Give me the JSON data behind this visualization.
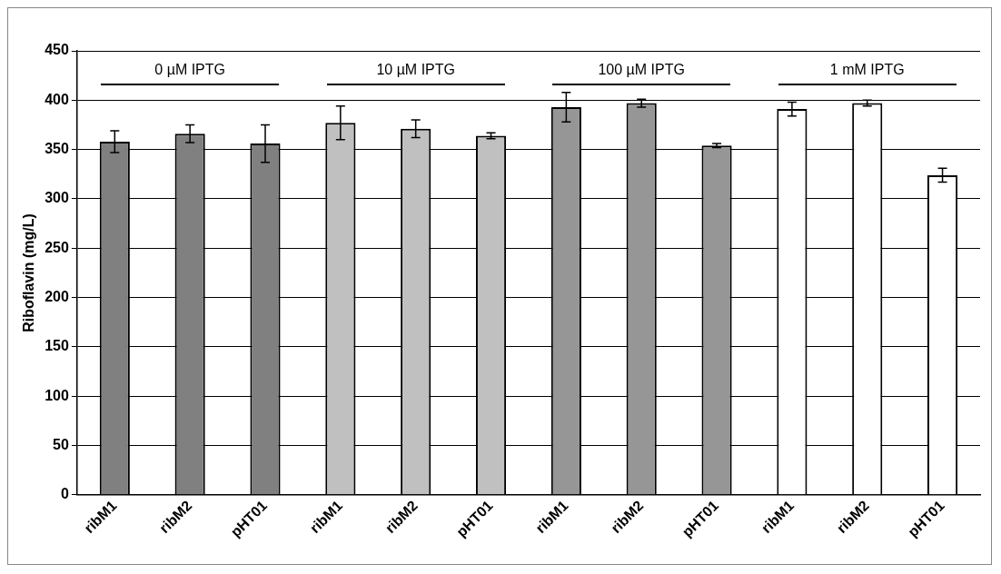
{
  "chart_data": {
    "type": "bar",
    "ylabel": "Riboflavin (mg/L)",
    "categories": [
      "ribM1",
      "ribM2",
      "pHT01",
      "ribM1",
      "ribM2",
      "pHT01",
      "ribM1",
      "ribM2",
      "pHT01",
      "ribM1",
      "ribM2",
      "pHT01"
    ],
    "values": [
      358,
      366,
      356,
      377,
      371,
      364,
      393,
      397,
      354,
      391,
      397,
      324
    ],
    "errors": [
      11,
      9,
      19,
      17,
      9,
      3,
      15,
      4,
      2,
      7,
      3,
      7
    ],
    "colors": [
      "#808080",
      "#808080",
      "#808080",
      "#c0c0c0",
      "#c0c0c0",
      "#c0c0c0",
      "#969696",
      "#969696",
      "#969696",
      "#ffffff",
      "#ffffff",
      "#ffffff"
    ],
    "ylim": [
      0,
      450
    ],
    "yticks": [
      0,
      50,
      100,
      150,
      200,
      250,
      300,
      350,
      400,
      450
    ],
    "grid": "y",
    "legend": false,
    "annotations": [
      "0 µM IPTG",
      "10 µM IPTG",
      "100 µM IPTG",
      "1 mM IPTG"
    ]
  }
}
